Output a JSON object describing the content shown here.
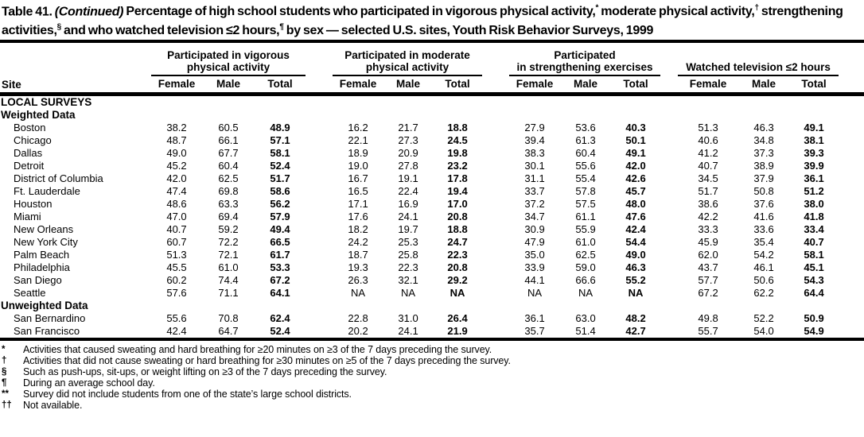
{
  "title": {
    "label": "Table 41.",
    "continued": "(Continued)",
    "segments": [
      {
        "text": " Percentage of high school students who participated in vigorous physical activity,"
      },
      {
        "sup": "*"
      },
      {
        "text": " moderate physical activity,"
      },
      {
        "sup": "†"
      },
      {
        "text": " strengthening activities,"
      },
      {
        "sup": "§"
      },
      {
        "text": " and who watched television ≤2 hours,"
      },
      {
        "sup": "¶"
      },
      {
        "text": " by sex — selected U.S. sites, Youth Risk Behavior Surveys, 1999"
      }
    ]
  },
  "table": {
    "site_header": "Site",
    "col_headers": [
      "Female",
      "Male",
      "Total"
    ],
    "groups": [
      {
        "line1": "Participated in vigorous",
        "line2": "physical activity"
      },
      {
        "line1": "Participated in moderate",
        "line2": "physical activity"
      },
      {
        "line1": "Participated",
        "line2": "in strengthening exercises"
      },
      {
        "line1": "",
        "line2": "Watched television ≤2 hours"
      }
    ],
    "sections": [
      {
        "heading": "LOCAL SURVEYS",
        "rows": []
      },
      {
        "heading": "Weighted Data",
        "rows": [
          {
            "site": "Boston",
            "values": [
              "38.2",
              "60.5",
              "48.9",
              "16.2",
              "21.7",
              "18.8",
              "27.9",
              "53.6",
              "40.3",
              "51.3",
              "46.3",
              "49.1"
            ]
          },
          {
            "site": "Chicago",
            "values": [
              "48.7",
              "66.1",
              "57.1",
              "22.1",
              "27.3",
              "24.5",
              "39.4",
              "61.3",
              "50.1",
              "40.6",
              "34.8",
              "38.1"
            ]
          },
          {
            "site": "Dallas",
            "values": [
              "49.0",
              "67.7",
              "58.1",
              "18.9",
              "20.9",
              "19.8",
              "38.3",
              "60.4",
              "49.1",
              "41.2",
              "37.3",
              "39.3"
            ]
          },
          {
            "site": "Detroit",
            "values": [
              "45.2",
              "60.4",
              "52.4",
              "19.0",
              "27.8",
              "23.2",
              "30.1",
              "55.6",
              "42.0",
              "40.7",
              "38.9",
              "39.9"
            ]
          },
          {
            "site": "District of Columbia",
            "values": [
              "42.0",
              "62.5",
              "51.7",
              "16.7",
              "19.1",
              "17.8",
              "31.1",
              "55.4",
              "42.6",
              "34.5",
              "37.9",
              "36.1"
            ]
          },
          {
            "site": "Ft. Lauderdale",
            "values": [
              "47.4",
              "69.8",
              "58.6",
              "16.5",
              "22.4",
              "19.4",
              "33.7",
              "57.8",
              "45.7",
              "51.7",
              "50.8",
              "51.2"
            ]
          },
          {
            "site": "Houston",
            "values": [
              "48.6",
              "63.3",
              "56.2",
              "17.1",
              "16.9",
              "17.0",
              "37.2",
              "57.5",
              "48.0",
              "38.6",
              "37.6",
              "38.0"
            ]
          },
          {
            "site": "Miami",
            "values": [
              "47.0",
              "69.4",
              "57.9",
              "17.6",
              "24.1",
              "20.8",
              "34.7",
              "61.1",
              "47.6",
              "42.2",
              "41.6",
              "41.8"
            ]
          },
          {
            "site": "New Orleans",
            "values": [
              "40.7",
              "59.2",
              "49.4",
              "18.2",
              "19.7",
              "18.8",
              "30.9",
              "55.9",
              "42.4",
              "33.3",
              "33.6",
              "33.4"
            ]
          },
          {
            "site": "New York City",
            "values": [
              "60.7",
              "72.2",
              "66.5",
              "24.2",
              "25.3",
              "24.7",
              "47.9",
              "61.0",
              "54.4",
              "45.9",
              "35.4",
              "40.7"
            ]
          },
          {
            "site": "Palm Beach",
            "values": [
              "51.3",
              "72.1",
              "61.7",
              "18.7",
              "25.8",
              "22.3",
              "35.0",
              "62.5",
              "49.0",
              "62.0",
              "54.2",
              "58.1"
            ]
          },
          {
            "site": "Philadelphia",
            "values": [
              "45.5",
              "61.0",
              "53.3",
              "19.3",
              "22.3",
              "20.8",
              "33.9",
              "59.0",
              "46.3",
              "43.7",
              "46.1",
              "45.1"
            ]
          },
          {
            "site": "San Diego",
            "values": [
              "60.2",
              "74.4",
              "67.2",
              "26.3",
              "32.1",
              "29.2",
              "44.1",
              "66.6",
              "55.2",
              "57.7",
              "50.6",
              "54.3"
            ]
          },
          {
            "site": "Seattle",
            "values": [
              "57.6",
              "71.1",
              "64.1",
              "NA",
              "NA",
              "NA",
              "NA",
              "NA",
              "NA",
              "67.2",
              "62.2",
              "64.4"
            ]
          }
        ]
      },
      {
        "heading": "Unweighted Data",
        "rows": [
          {
            "site": "San Bernardino",
            "values": [
              "55.6",
              "70.8",
              "62.4",
              "22.8",
              "31.0",
              "26.4",
              "36.1",
              "63.0",
              "48.2",
              "49.8",
              "52.2",
              "50.9"
            ]
          },
          {
            "site": "San Francisco",
            "values": [
              "42.4",
              "64.7",
              "52.4",
              "20.2",
              "24.1",
              "21.9",
              "35.7",
              "51.4",
              "42.7",
              "55.7",
              "54.0",
              "54.9"
            ]
          }
        ]
      }
    ]
  },
  "footnotes": [
    {
      "marker": "*",
      "text": "Activities that caused sweating and hard breathing for ≥20 minutes on ≥3 of the 7 days preceding the survey."
    },
    {
      "marker": "†",
      "text": "Activities that did not cause sweating or hard breathing for ≥30 minutes on ≥5 of the 7 days preceding the survey."
    },
    {
      "marker": "§",
      "text": "Such as push-ups, sit-ups, or weight lifting on ≥3 of the 7 days preceding the survey."
    },
    {
      "marker": "¶",
      "text": "During an average school day."
    },
    {
      "marker": "**",
      "text": "Survey did not include students from one of the state’s large school districts."
    },
    {
      "marker": "††",
      "text": "Not available."
    }
  ]
}
